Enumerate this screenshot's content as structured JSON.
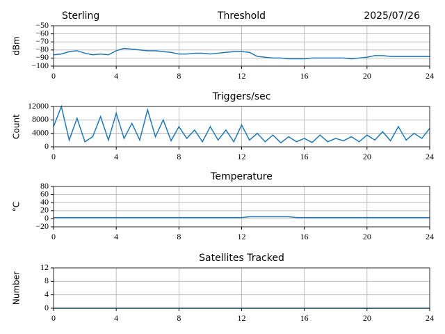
{
  "chart_data": [
    {
      "type": "line",
      "title": "Threshold",
      "station": "Sterling",
      "date": "2025/07/26",
      "ylabel": "dBm",
      "x": [
        0,
        0.5,
        1,
        1.5,
        2,
        2.5,
        3,
        3.5,
        4,
        4.5,
        5,
        5.5,
        6,
        6.5,
        7,
        7.5,
        8,
        8.5,
        9,
        9.5,
        10,
        10.5,
        11,
        11.5,
        12,
        12.5,
        13,
        13.5,
        14,
        14.5,
        15,
        15.5,
        16,
        16.5,
        17,
        17.5,
        18,
        18.5,
        19,
        19.5,
        20,
        20.5,
        21,
        21.5,
        22,
        22.5,
        23,
        23.5,
        24
      ],
      "values": [
        -86,
        -85,
        -82,
        -81,
        -84,
        -86,
        -85,
        -86,
        -81,
        -78,
        -79,
        -80,
        -81,
        -81,
        -82,
        -83,
        -85,
        -85,
        -84,
        -84,
        -85,
        -84,
        -83,
        -82,
        -82,
        -83,
        -88,
        -89,
        -90,
        -90,
        -91,
        -91,
        -91,
        -90,
        -90,
        -90,
        -90,
        -90,
        -91,
        -90,
        -89,
        -87,
        -87,
        -88,
        -88,
        -88,
        -88,
        -88,
        -88
      ],
      "color": "#1f77b4",
      "xlim": [
        0,
        24
      ],
      "ylim": [
        -100,
        -50
      ],
      "xticks": [
        0,
        4,
        8,
        12,
        16,
        20,
        24
      ],
      "yticks": [
        {
          "value": -100,
          "label": "−100"
        },
        {
          "value": -90,
          "label": "−90"
        },
        {
          "value": -80,
          "label": "−80"
        },
        {
          "value": -70,
          "label": "−70"
        },
        {
          "value": -60,
          "label": "−60"
        },
        {
          "value": -50,
          "label": "−50"
        }
      ],
      "grid": true
    },
    {
      "type": "line",
      "title": "Triggers/sec",
      "ylabel": "Count",
      "x": [
        0,
        0.5,
        1,
        1.5,
        2,
        2.5,
        3,
        3.5,
        4,
        4.5,
        5,
        5.5,
        6,
        6.5,
        7,
        7.5,
        8,
        8.5,
        9,
        9.5,
        10,
        10.5,
        11,
        11.5,
        12,
        12.5,
        13,
        13.5,
        14,
        14.5,
        15,
        15.5,
        16,
        16.5,
        17,
        17.5,
        18,
        18.5,
        19,
        19.5,
        20,
        20.5,
        21,
        21.5,
        22,
        22.5,
        23,
        23.5,
        24
      ],
      "values": [
        6000,
        12000,
        2000,
        8500,
        1500,
        3000,
        9000,
        2000,
        10000,
        2500,
        7000,
        2000,
        11000,
        3000,
        8000,
        1800,
        6000,
        2500,
        5000,
        1500,
        6000,
        2000,
        5000,
        1500,
        6500,
        2000,
        4000,
        1500,
        3500,
        1200,
        3000,
        1500,
        2500,
        1300,
        3500,
        1500,
        2500,
        1800,
        3000,
        1500,
        3500,
        2000,
        4500,
        1800,
        6000,
        2000,
        4000,
        2500,
        5500
      ],
      "color": "#1f77b4",
      "xlim": [
        0,
        24
      ],
      "ylim": [
        0,
        12000
      ],
      "xticks": [
        0,
        4,
        8,
        12,
        16,
        20,
        24
      ],
      "yticks": [
        0,
        4000,
        8000,
        12000
      ],
      "grid": true
    },
    {
      "type": "line",
      "title": "Temperature",
      "ylabel": "°C",
      "x": [
        0,
        4,
        8,
        12,
        12.5,
        13,
        14,
        15,
        15.5,
        20,
        24
      ],
      "values": [
        3,
        3,
        3,
        3,
        5,
        5,
        5,
        5,
        3,
        3,
        3
      ],
      "color": "#1f77b4",
      "xlim": [
        0,
        24
      ],
      "ylim": [
        -20,
        80
      ],
      "xticks": [
        0,
        4,
        8,
        12,
        16,
        20,
        24
      ],
      "yticks": [
        {
          "value": -20,
          "label": "−20"
        },
        0,
        20,
        40,
        60,
        80
      ],
      "grid": true
    },
    {
      "type": "line",
      "title": "Satellites Tracked",
      "ylabel": "Number",
      "x": [
        0,
        24
      ],
      "values": [
        0,
        0
      ],
      "color": "#1f77b4",
      "xlim": [
        0,
        24
      ],
      "ylim": [
        0,
        12
      ],
      "xticks": [
        0,
        4,
        8,
        12,
        16,
        20,
        24
      ],
      "yticks": [
        0,
        4,
        8,
        12
      ],
      "grid": true
    }
  ]
}
